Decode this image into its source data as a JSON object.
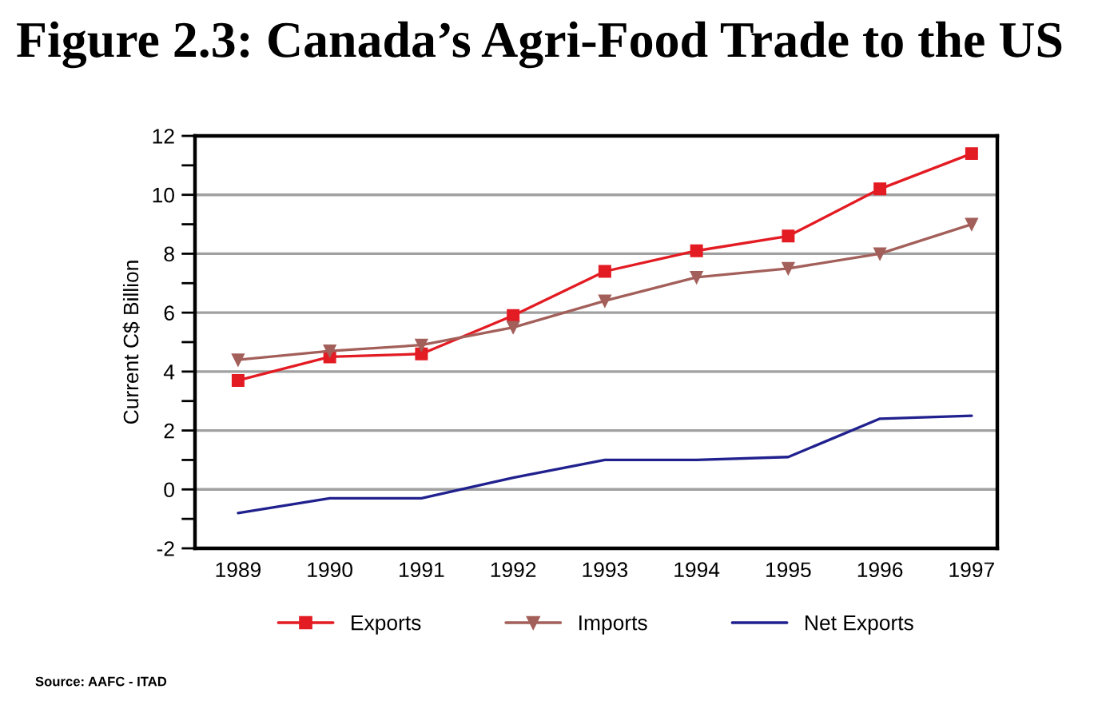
{
  "chart_data": {
    "type": "line",
    "title": "Figure 2.3: Canada’s Agri-Food Trade to the US",
    "ylabel": "Current C$ Billion",
    "categories": [
      "1989",
      "1990",
      "1991",
      "1992",
      "1993",
      "1994",
      "1995",
      "1996",
      "1997"
    ],
    "series": [
      {
        "name": "Exports",
        "color": "#e31b23",
        "marker": "square",
        "values": [
          3.7,
          4.5,
          4.6,
          5.9,
          7.4,
          8.1,
          8.6,
          10.2,
          11.4
        ]
      },
      {
        "name": "Imports",
        "color": "#a35f5a",
        "marker": "triangle",
        "values": [
          4.4,
          4.7,
          4.9,
          5.5,
          6.4,
          7.2,
          7.5,
          8.0,
          9.0
        ]
      },
      {
        "name": "Net Exports",
        "color": "#20208e",
        "marker": "none",
        "values": [
          -0.8,
          -0.3,
          -0.3,
          0.4,
          1.0,
          1.0,
          1.1,
          2.4,
          2.5
        ]
      }
    ],
    "ylim": [
      -2,
      12
    ],
    "yticks": [
      -2,
      {
        "value": -1,
        "label": null
      },
      0,
      {
        "value": 1,
        "label": null
      },
      2,
      {
        "value": 3,
        "label": null
      },
      4,
      {
        "value": 5,
        "label": null
      },
      6,
      {
        "value": 7,
        "label": null
      },
      8,
      {
        "value": 9,
        "label": null
      },
      10,
      {
        "value": 11,
        "label": null
      },
      12
    ],
    "grid": "y",
    "legend": "bottom",
    "line_style": "solid",
    "annotations": [
      "Source: AAFC - ITAD"
    ]
  }
}
